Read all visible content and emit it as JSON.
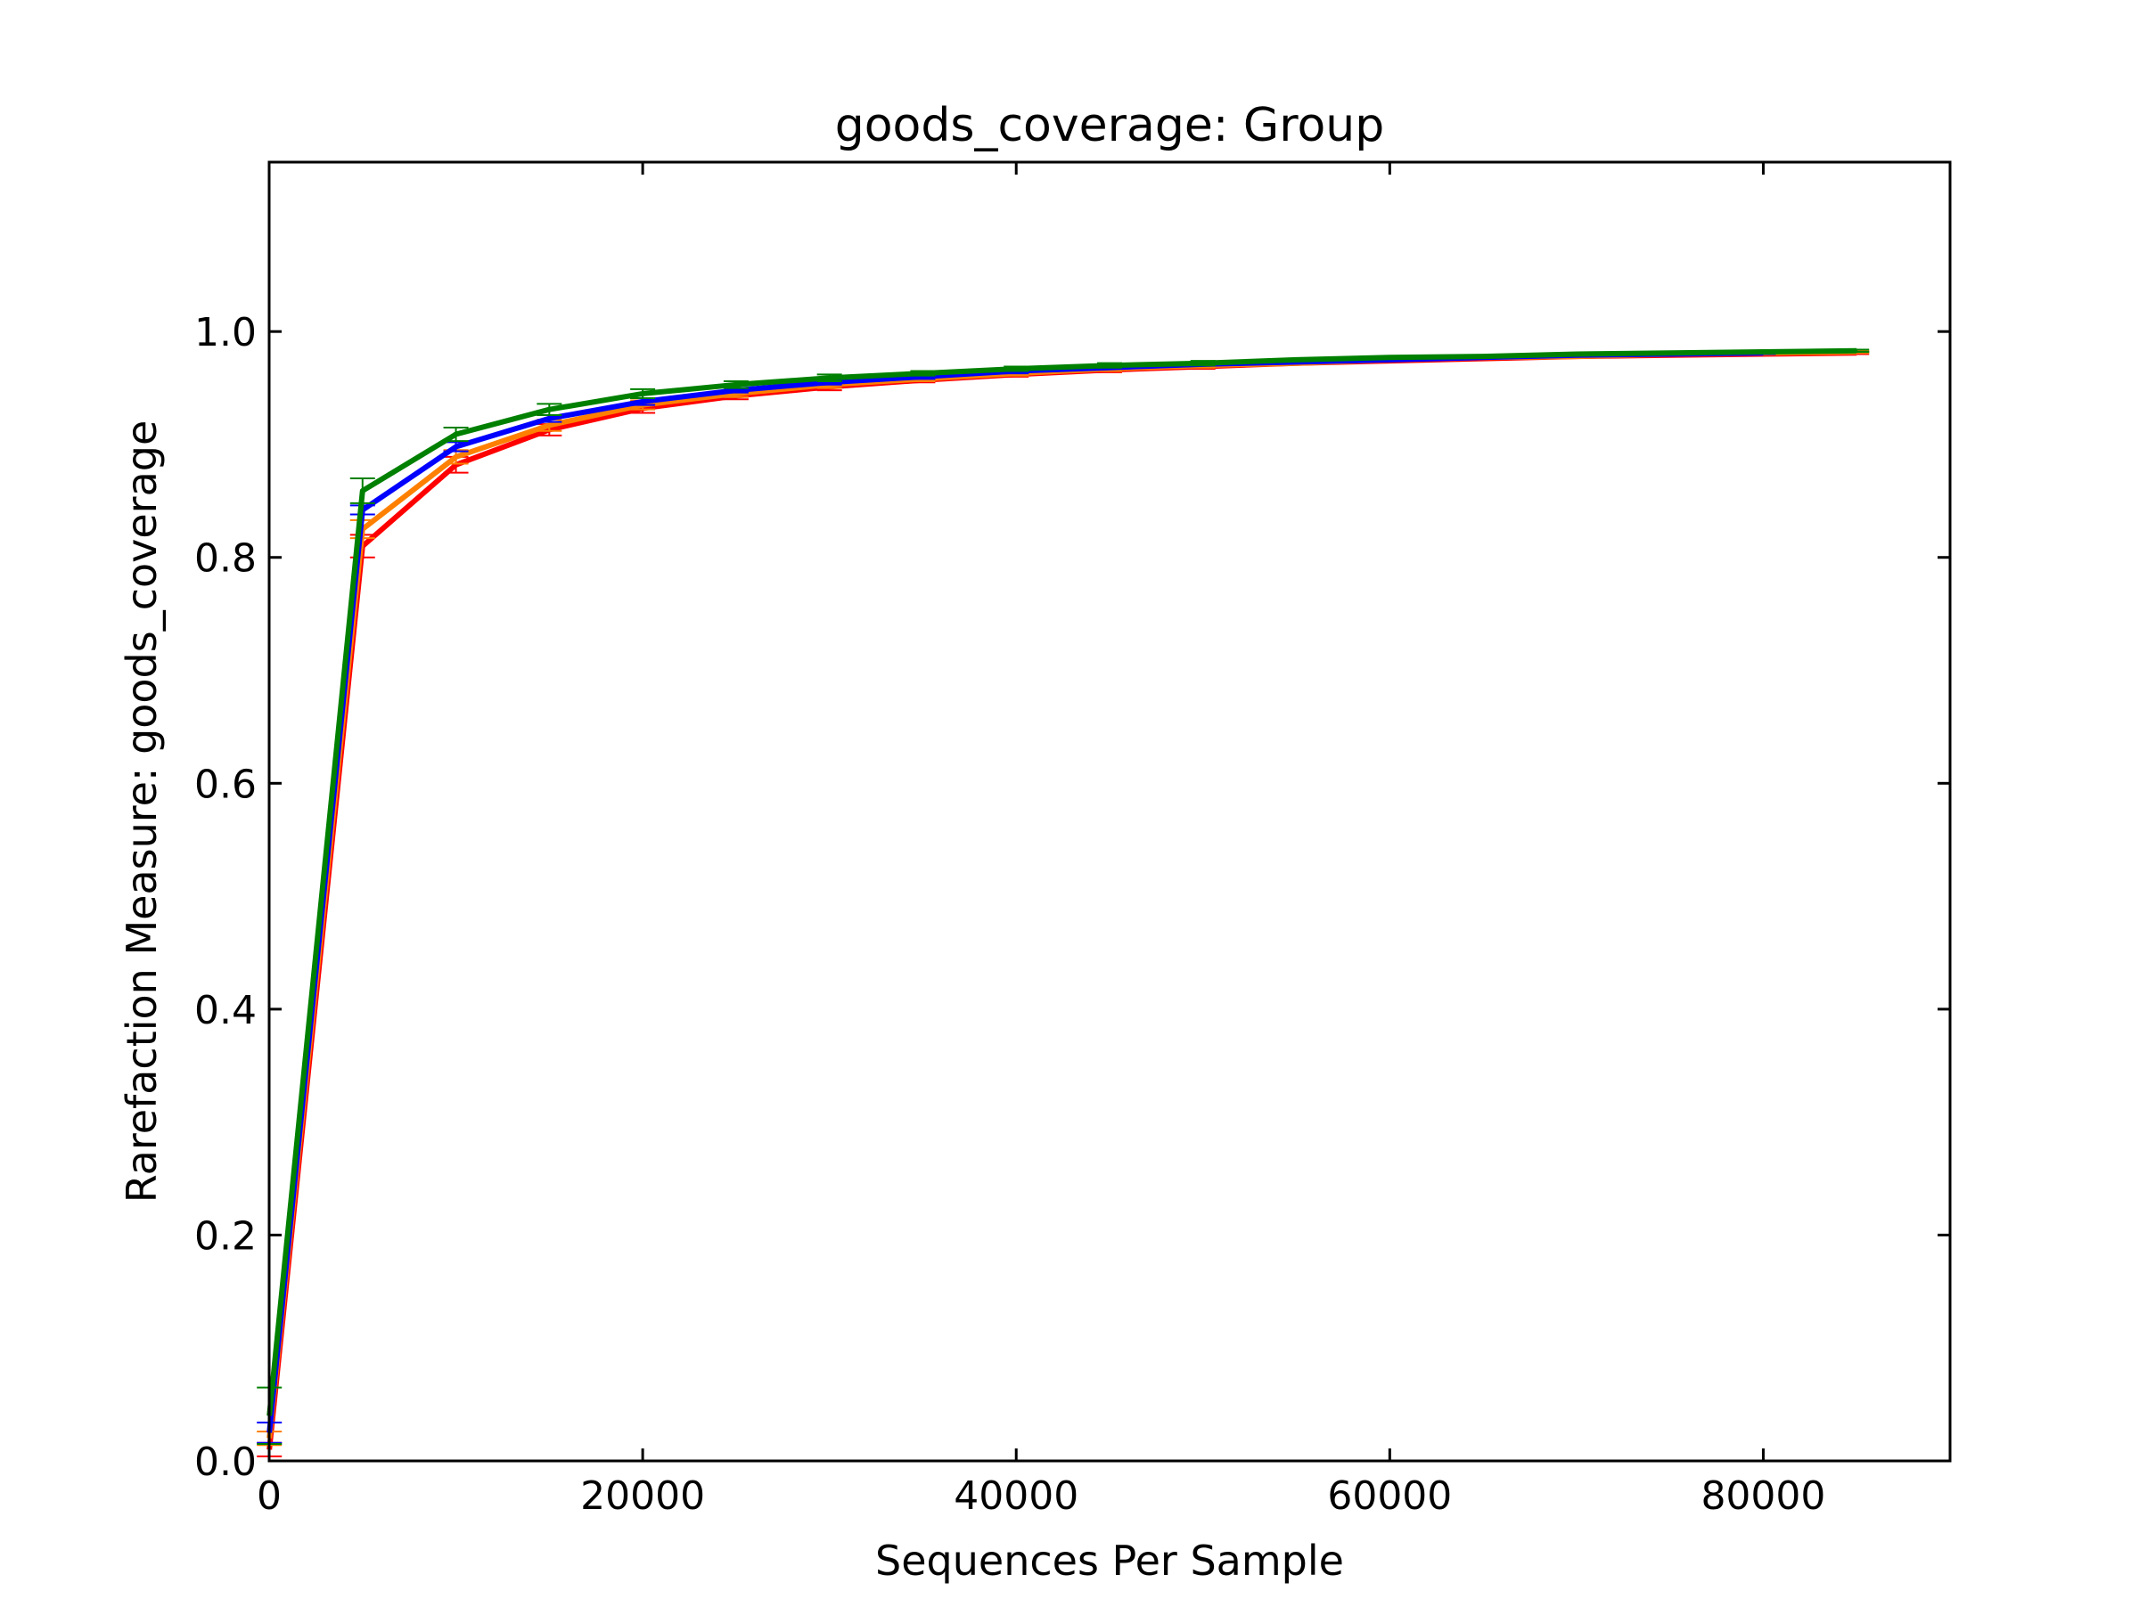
{
  "chart_data": {
    "type": "line",
    "title": "goods_coverage: Group",
    "xlabel": "Sequences Per Sample",
    "ylabel": "Rarefaction Measure: goods_coverage",
    "xlim": [
      0,
      90000
    ],
    "ylim": [
      0.0,
      1.15
    ],
    "x_ticks": [
      0,
      20000,
      40000,
      60000,
      80000
    ],
    "x_tick_labels": [
      "0",
      "20000",
      "40000",
      "60000",
      "80000"
    ],
    "y_ticks": [
      0.0,
      0.2,
      0.4,
      0.6,
      0.8,
      1.0
    ],
    "y_tick_labels": [
      "0.0",
      "0.2",
      "0.4",
      "0.6",
      "0.8",
      "1.0"
    ],
    "grid": false,
    "legend": "none",
    "error_bars": true,
    "series": [
      {
        "color": "#ff0000",
        "x": [
          10,
          5000,
          10000,
          15000,
          20000,
          25000,
          30000,
          35000,
          40000,
          45000,
          50000,
          55000,
          60000,
          65000,
          70000,
          75000,
          80000,
          85000
        ],
        "values": [
          0.01,
          0.81,
          0.882,
          0.913,
          0.932,
          0.943,
          0.951,
          0.957,
          0.962,
          0.966,
          0.969,
          0.972,
          0.974,
          0.976,
          0.978,
          0.979,
          0.98,
          0.981
        ],
        "errors": [
          0.006,
          0.01,
          0.007,
          0.005,
          0.004,
          0.003,
          0.003,
          0.002,
          0.002,
          0.002,
          0.002,
          0.001,
          0.001,
          0.001,
          0.001,
          0.001,
          0.001,
          0.001
        ]
      },
      {
        "color": "#ff8000",
        "x": [
          10,
          5000,
          10000,
          15000,
          20000,
          25000,
          30000,
          35000,
          40000,
          45000,
          50000,
          55000,
          60000,
          65000,
          70000,
          75000,
          80000,
          85000
        ],
        "values": [
          0.02,
          0.825,
          0.889,
          0.917,
          0.935,
          0.945,
          0.953,
          0.958,
          0.963,
          0.967,
          0.97,
          0.972,
          0.975,
          0.977,
          0.978,
          0.98,
          0.981,
          0.982
        ],
        "errors": [
          0.006,
          0.008,
          0.006,
          0.005,
          0.004,
          0.003,
          0.003,
          0.002,
          0.002,
          0.002,
          0.002,
          0.001,
          0.001,
          0.001,
          0.001,
          0.001,
          0.001,
          0.001
        ]
      },
      {
        "color": "#0000ff",
        "x": [
          10,
          5000,
          10000,
          15000,
          20000,
          25000,
          30000,
          35000,
          40000,
          45000,
          50000,
          55000,
          60000,
          65000,
          70000,
          75000,
          80000
        ],
        "values": [
          0.025,
          0.842,
          0.898,
          0.923,
          0.938,
          0.948,
          0.955,
          0.96,
          0.965,
          0.968,
          0.971,
          0.973,
          0.975,
          0.977,
          0.979,
          0.98,
          0.981
        ],
        "errors": [
          0.009,
          0.004,
          0.004,
          0.003,
          0.003,
          0.002,
          0.002,
          0.002,
          0.002,
          0.001,
          0.001,
          0.001,
          0.001,
          0.001,
          0.001,
          0.001,
          0.001
        ]
      },
      {
        "color": "#008000",
        "x": [
          10,
          5000,
          10000,
          15000,
          20000,
          25000,
          30000,
          35000,
          40000,
          45000,
          50000,
          55000,
          60000,
          65000,
          70000,
          75000,
          80000,
          85000
        ],
        "values": [
          0.04,
          0.859,
          0.909,
          0.931,
          0.945,
          0.953,
          0.959,
          0.963,
          0.967,
          0.97,
          0.972,
          0.975,
          0.977,
          0.978,
          0.98,
          0.981,
          0.982,
          0.983
        ],
        "errors": [
          0.025,
          0.011,
          0.006,
          0.005,
          0.004,
          0.003,
          0.003,
          0.002,
          0.002,
          0.002,
          0.002,
          0.001,
          0.001,
          0.001,
          0.001,
          0.001,
          0.001,
          0.001
        ]
      }
    ]
  }
}
